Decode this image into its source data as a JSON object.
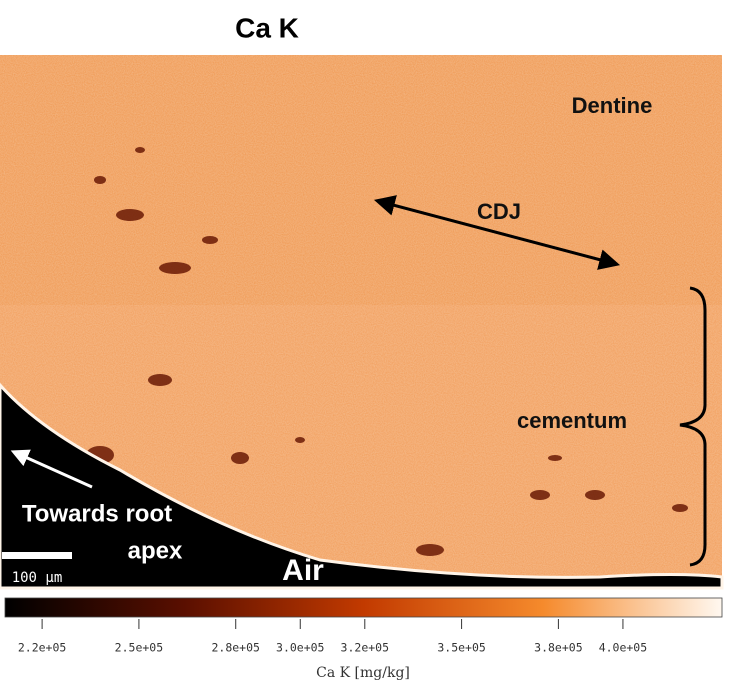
{
  "title": "Ca K",
  "annotations": {
    "dentine": "Dentine",
    "cdj": "CDJ",
    "cementum": "cementum",
    "towards_1": "Towards root",
    "towards_2": "apex",
    "air": "Air"
  },
  "scale_bar": "100 μm",
  "colorbar": {
    "label": "Ca K  [mg/kg]",
    "lim": [
      208500,
      430700
    ],
    "ticks": [
      {
        "value": 220000,
        "label": "2.2e+05"
      },
      {
        "value": 250000,
        "label": "2.5e+05"
      },
      {
        "value": 280000,
        "label": "2.8e+05"
      },
      {
        "value": 300000,
        "label": "3.0e+05"
      },
      {
        "value": 320000,
        "label": "3.2e+05"
      },
      {
        "value": 350000,
        "label": "3.5e+05"
      },
      {
        "value": 380000,
        "label": "3.8e+05"
      },
      {
        "value": 400000,
        "label": "4.0e+05"
      }
    ]
  }
}
